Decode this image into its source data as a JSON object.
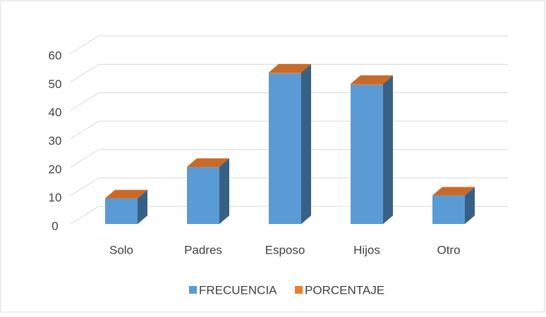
{
  "chart_data": {
    "type": "bar3d_stacked",
    "categories": [
      "Solo",
      "Padres",
      "Esposo",
      "Hijos",
      "Otro"
    ],
    "series": [
      {
        "name": "FRECUENCIA",
        "color": "#5b9bd5",
        "values": [
          9,
          20,
          53,
          49,
          10
        ]
      },
      {
        "name": "PORCENTAJE",
        "color": "#ed7d31",
        "values": [
          0.06,
          0.14,
          0.38,
          0.35,
          0.07
        ]
      }
    ],
    "ylim": [
      0,
      60
    ],
    "yticks": [
      0,
      10,
      20,
      30,
      40,
      50,
      60
    ],
    "grid": true,
    "legend": "bottom"
  }
}
